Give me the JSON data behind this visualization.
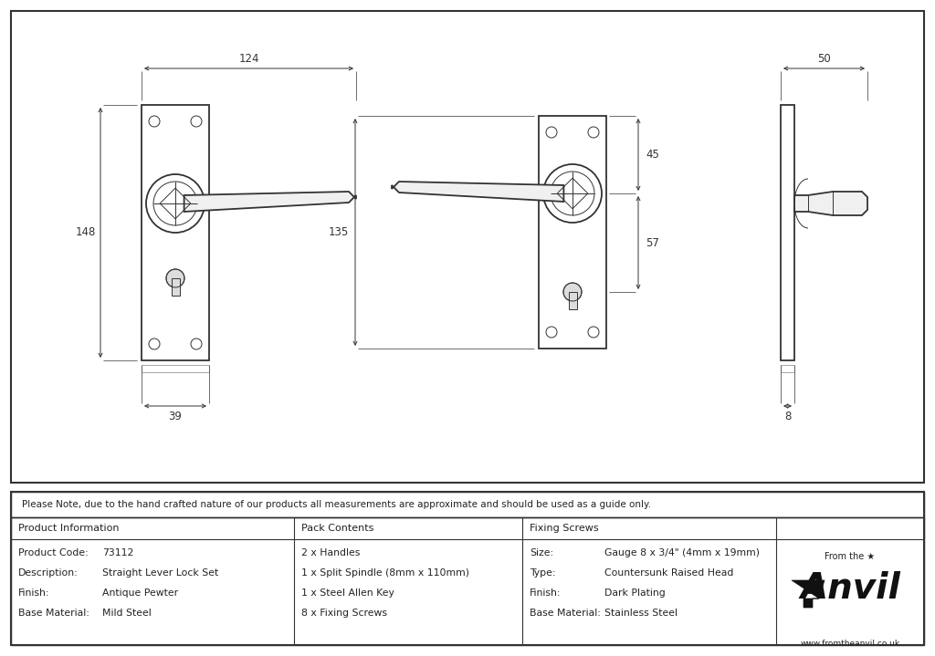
{
  "line_color": "#333333",
  "dim_color": "#333333",
  "note_text": "Please Note, due to the hand crafted nature of our products all measurements are approximate and should be used as a guide only.",
  "product_info": [
    [
      "Product Code:",
      "73112"
    ],
    [
      "Description:",
      "Straight Lever Lock Set"
    ],
    [
      "Finish:",
      "Antique Pewter"
    ],
    [
      "Base Material:",
      "Mild Steel"
    ]
  ],
  "pack_contents_header": "Pack Contents",
  "pack_contents": [
    "2 x Handles",
    "1 x Split Spindle (8mm x 110mm)",
    "1 x Steel Allen Key",
    "8 x Fixing Screws"
  ],
  "fixing_screws_header": "Fixing Screws",
  "fixing_screws": [
    [
      "Size:",
      "Gauge 8 x 3/4\" (4mm x 19mm)"
    ],
    [
      "Type:",
      "Countersunk Raised Head"
    ],
    [
      "Finish:",
      "Dark Plating"
    ],
    [
      "Base Material:",
      "Stainless Steel"
    ]
  ],
  "product_info_header": "Product Information"
}
